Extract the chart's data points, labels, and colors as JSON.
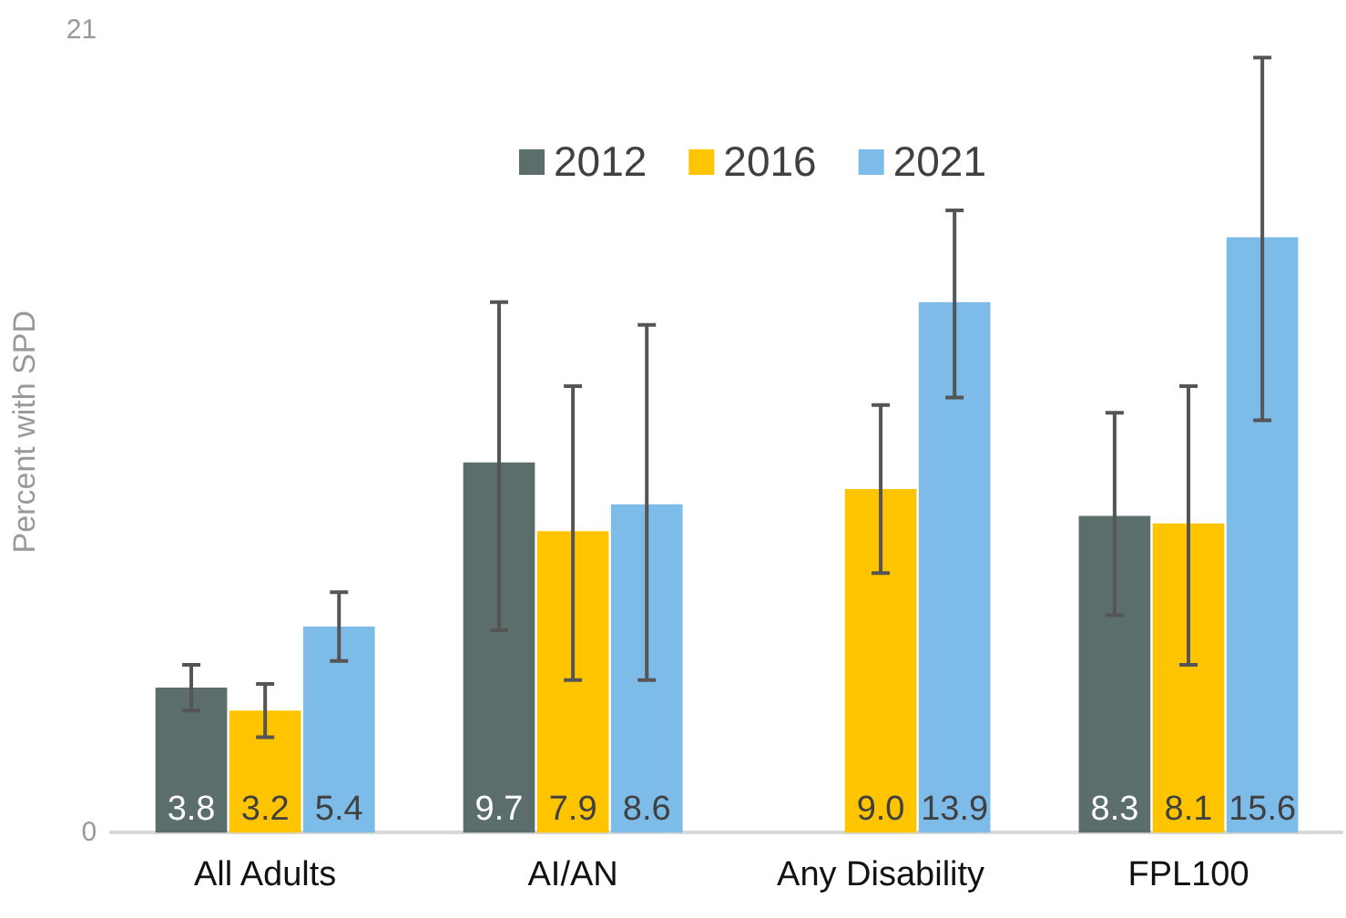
{
  "chart_data": {
    "type": "bar",
    "ylabel": "Percent with SPD",
    "categories": [
      "All Adults",
      "AI/AN",
      "Any Disability",
      "FPL100"
    ],
    "series": [
      {
        "name": "2012",
        "color": "#5b6e6b",
        "values": [
          3.8,
          9.7,
          null,
          8.3
        ],
        "errors": [
          [
            3.2,
            4.4
          ],
          [
            5.3,
            13.9
          ],
          null,
          [
            5.7,
            11.0
          ]
        ]
      },
      {
        "name": "2016",
        "color": "#ffc400",
        "values": [
          3.2,
          7.9,
          9.0,
          8.1
        ],
        "errors": [
          [
            2.5,
            3.9
          ],
          [
            4.0,
            11.7
          ],
          [
            6.8,
            11.2
          ],
          [
            4.4,
            11.7
          ]
        ]
      },
      {
        "name": "2021",
        "color": "#7dbbe8",
        "values": [
          5.4,
          8.6,
          13.9,
          15.6
        ],
        "errors": [
          [
            4.5,
            6.3
          ],
          [
            4.0,
            13.3
          ],
          [
            11.4,
            16.3
          ],
          [
            10.8,
            20.3
          ]
        ]
      }
    ],
    "value_labels": [
      [
        "3.8",
        "9.7",
        null,
        "8.3"
      ],
      [
        "3.2",
        "7.9",
        "9.0",
        "8.1"
      ],
      [
        "5.4",
        "8.6",
        "13.9",
        "15.6"
      ]
    ],
    "ylim": [
      0,
      21
    ],
    "yticks": [
      0,
      21
    ],
    "grid": false,
    "legend": "top"
  }
}
